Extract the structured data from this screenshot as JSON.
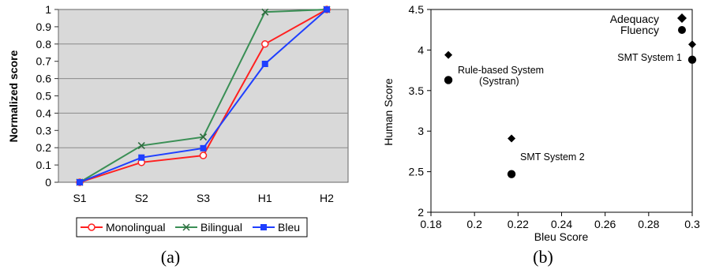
{
  "chart_data": [
    {
      "type": "line",
      "caption": "(a)",
      "categories": [
        "S1",
        "S2",
        "S3",
        "H1",
        "H2"
      ],
      "ylabel": "Normalized score",
      "ylim": [
        0,
        1
      ],
      "yticks": [
        "0",
        "0.1",
        "0.2",
        "0.3",
        "0.4",
        "0.5",
        "0.6",
        "0.7",
        "0.8",
        "0.9",
        "1"
      ],
      "grid": true,
      "legend": "bottom",
      "series": [
        {
          "name": "Monolingual",
          "color": "#ff2020",
          "marker": "open-circle",
          "values": [
            0,
            0.115,
            0.155,
            0.8,
            1.0
          ]
        },
        {
          "name": "Bilingual",
          "color": "#3a8f55",
          "marker": "x",
          "values": [
            0,
            0.212,
            0.262,
            0.985,
            1.0
          ]
        },
        {
          "name": "Bleu",
          "color": "#1f3fff",
          "marker": "square",
          "values": [
            0,
            0.143,
            0.197,
            0.685,
            1.0
          ]
        }
      ]
    },
    {
      "type": "scatter",
      "caption": "(b)",
      "xlabel": "Bleu Score",
      "ylabel": "Human Score",
      "xlim": [
        0.18,
        0.3
      ],
      "ylim": [
        2,
        4.5
      ],
      "xticks": [
        "0.18",
        "0.2",
        "0.22",
        "0.24",
        "0.26",
        "0.28",
        "0.3"
      ],
      "yticks": [
        "2",
        "2.5",
        "3",
        "3.5",
        "4",
        "4.5"
      ],
      "legend": "top-right",
      "series": [
        {
          "name": "Adequacy",
          "marker": "diamond",
          "points": [
            [
              0.188,
              3.94
            ],
            [
              0.217,
              2.91
            ],
            [
              0.3,
              4.07
            ]
          ]
        },
        {
          "name": "Fluency",
          "marker": "circle",
          "points": [
            [
              0.188,
              3.63
            ],
            [
              0.217,
              2.47
            ],
            [
              0.3,
              3.88
            ]
          ]
        }
      ],
      "annotations": [
        {
          "text": "Rule-based System",
          "x": 0.188,
          "y": 3.94
        },
        {
          "text": "(Systran)",
          "x": 0.188,
          "y": 3.94
        },
        {
          "text": "SMT System 2",
          "x": 0.217,
          "y": 2.91
        },
        {
          "text": "SMT System 1",
          "x": 0.3,
          "y": 4.07
        }
      ]
    }
  ]
}
